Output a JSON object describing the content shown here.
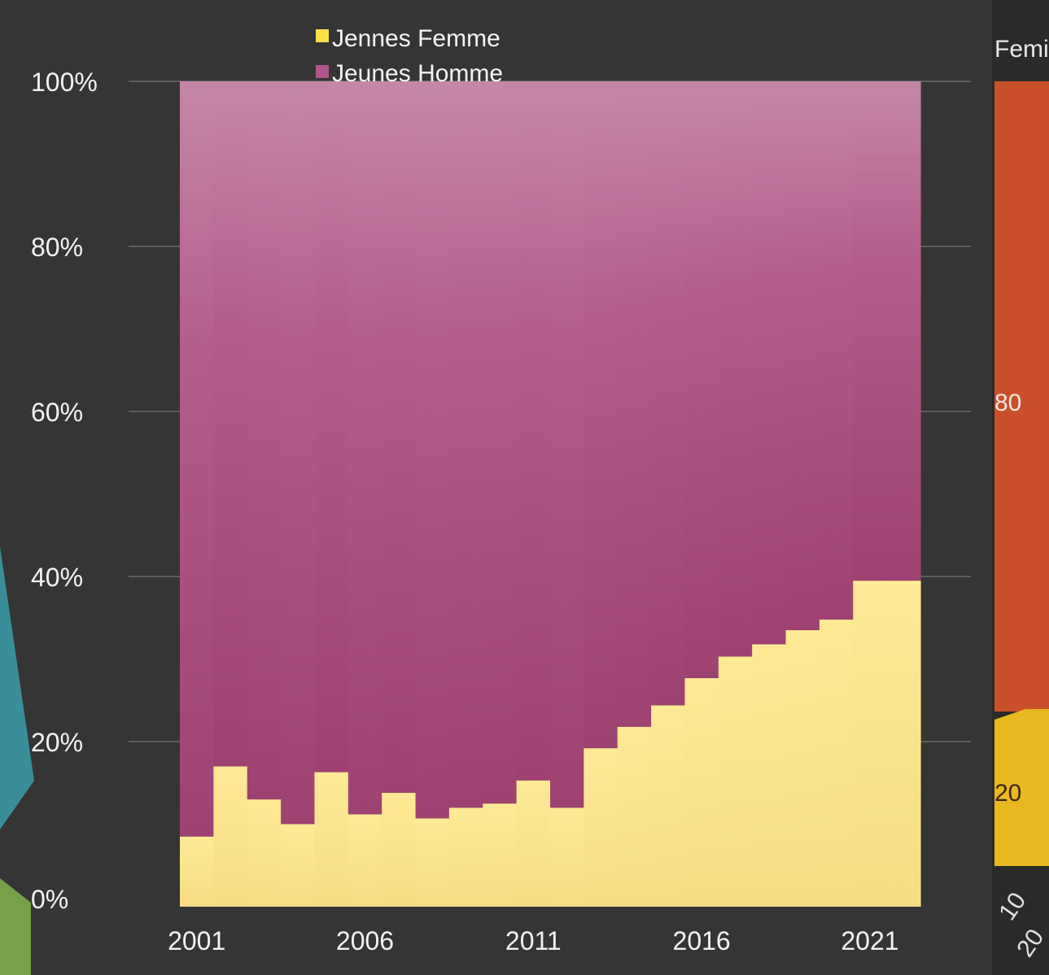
{
  "chart_data": [
    {
      "type": "bar",
      "stacked": true,
      "normalized_percent": true,
      "legend": [
        "Jennes Femme",
        "Jeunes Homme"
      ],
      "legend_position": "top",
      "x": [
        2001,
        2002,
        2003,
        2004,
        2005,
        2006,
        2007,
        2008,
        2009,
        2010,
        2011,
        2012,
        2013,
        2014,
        2015,
        2016,
        2017,
        2018,
        2019,
        2020,
        2021,
        2022
      ],
      "x_tick_labels": [
        "2001",
        "2006",
        "2011",
        "2016",
        "2021"
      ],
      "series": [
        {
          "name": "Jennes Femme",
          "color": "#fde68a",
          "values": [
            8.5,
            17,
            13,
            10,
            16.3,
            11.2,
            13.8,
            10.7,
            12,
            12.5,
            15.3,
            12,
            19.2,
            21.8,
            24.4,
            27.7,
            30.3,
            31.8,
            33.5,
            34.8,
            39.5,
            39.5
          ]
        },
        {
          "name": "Jeunes Homme",
          "color": "#a54a7a",
          "values": [
            91.5,
            83,
            87,
            90,
            83.7,
            88.8,
            86.2,
            89.3,
            88,
            87.5,
            84.7,
            88,
            80.8,
            78.2,
            75.6,
            72.3,
            69.7,
            68.2,
            66.5,
            65.2,
            60.5,
            60.5
          ]
        }
      ],
      "y_ticks": [
        "0%",
        "20%",
        "40%",
        "60%",
        "80%",
        "100%"
      ],
      "ylim": [
        0,
        100
      ],
      "grid": true
    },
    {
      "type": "bar",
      "partially_visible": true,
      "legend_fragment": "Femi",
      "tick_labels": [
        "80",
        "20"
      ],
      "x_label_fragments": [
        "10",
        "20"
      ],
      "colors": {
        "upper": "#c9502a",
        "lower": "#e9b820"
      }
    }
  ]
}
